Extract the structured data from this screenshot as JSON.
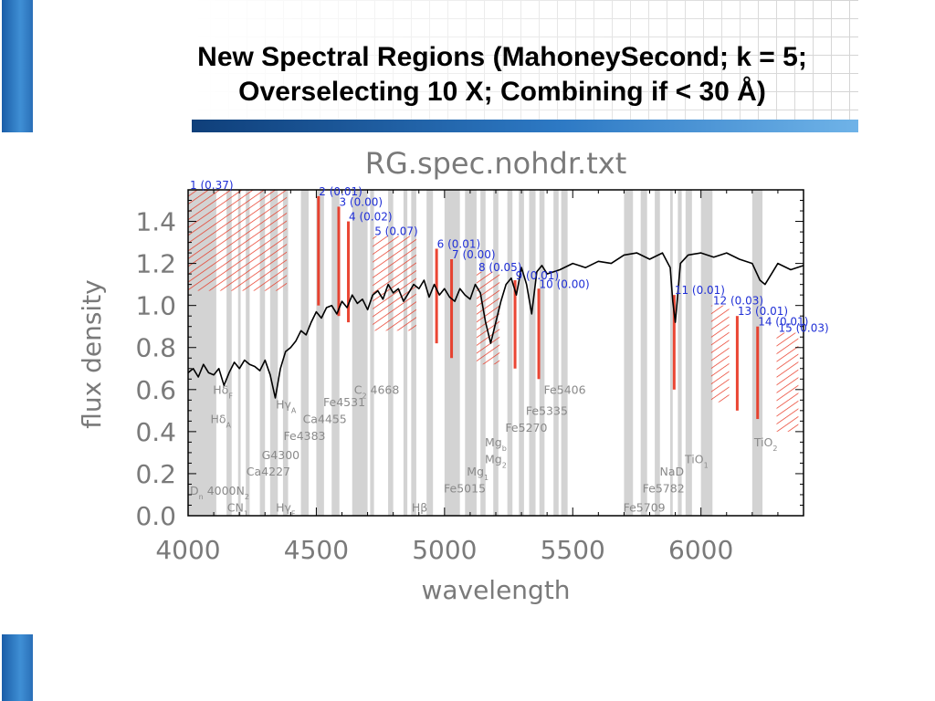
{
  "slide": {
    "title_line1": "New Spectral Regions (MahoneySecond; k = 5;",
    "title_line2": "Overselecting 10 X; Combining if < 30 Å)"
  },
  "colors": {
    "accent_blue": "#2a6fb8",
    "region_red": "#e8321e",
    "band_gray": "#d3d3d3",
    "label_blue": "#1f2fd6",
    "spectrum": "#000000"
  },
  "chart_data": {
    "type": "line",
    "title": "RG.spec.nohdr.txt",
    "xlabel": "wavelength",
    "ylabel": "flux density",
    "xlim": [
      4000,
      6400
    ],
    "ylim": [
      0.0,
      1.55
    ],
    "xticks": [
      4000,
      4500,
      5000,
      5500,
      6000
    ],
    "xtick_labels": [
      "4000",
      "4500",
      "5000",
      "5500",
      "6000"
    ],
    "yticks": [
      0.0,
      0.2,
      0.4,
      0.6,
      0.8,
      1.0,
      1.2,
      1.4
    ],
    "ytick_labels": [
      "0.0",
      "0.2",
      "0.4",
      "0.6",
      "0.8",
      "1.0",
      "1.2",
      "1.4"
    ],
    "spectrum": {
      "x": [
        4000,
        4020,
        4040,
        4060,
        4080,
        4100,
        4120,
        4140,
        4160,
        4180,
        4200,
        4220,
        4240,
        4260,
        4280,
        4300,
        4320,
        4340,
        4360,
        4380,
        4400,
        4420,
        4440,
        4460,
        4480,
        4500,
        4520,
        4540,
        4560,
        4580,
        4600,
        4620,
        4640,
        4660,
        4680,
        4700,
        4720,
        4740,
        4760,
        4780,
        4800,
        4820,
        4840,
        4860,
        4880,
        4900,
        4920,
        4940,
        4960,
        4980,
        5000,
        5020,
        5040,
        5060,
        5080,
        5100,
        5120,
        5140,
        5160,
        5180,
        5200,
        5220,
        5240,
        5260,
        5280,
        5300,
        5320,
        5340,
        5360,
        5380,
        5400,
        5450,
        5500,
        5550,
        5600,
        5650,
        5700,
        5750,
        5800,
        5850,
        5880,
        5890,
        5900,
        5920,
        5950,
        6000,
        6050,
        6100,
        6150,
        6200,
        6230,
        6250,
        6280,
        6300,
        6350,
        6400
      ],
      "y": [
        0.68,
        0.7,
        0.66,
        0.72,
        0.68,
        0.67,
        0.7,
        0.62,
        0.68,
        0.73,
        0.7,
        0.74,
        0.72,
        0.71,
        0.69,
        0.74,
        0.67,
        0.56,
        0.7,
        0.78,
        0.8,
        0.83,
        0.88,
        0.86,
        0.92,
        0.97,
        0.94,
        0.99,
        1.0,
        0.96,
        1.02,
        0.99,
        1.05,
        1.01,
        1.03,
        0.98,
        1.05,
        1.07,
        1.03,
        1.1,
        1.06,
        1.08,
        1.02,
        1.06,
        1.1,
        1.08,
        1.12,
        1.04,
        1.1,
        1.05,
        1.08,
        1.04,
        1.02,
        1.08,
        1.05,
        1.03,
        1.1,
        1.06,
        0.92,
        0.82,
        0.92,
        1.02,
        1.1,
        1.13,
        1.05,
        1.18,
        1.1,
        0.96,
        1.16,
        1.19,
        1.15,
        1.17,
        1.2,
        1.18,
        1.21,
        1.2,
        1.24,
        1.25,
        1.22,
        1.25,
        1.18,
        1.02,
        0.92,
        1.2,
        1.24,
        1.25,
        1.23,
        1.25,
        1.22,
        1.2,
        1.12,
        1.1,
        1.16,
        1.2,
        1.17,
        1.19
      ]
    },
    "gray_bands": [
      [
        4000,
        4110
      ],
      [
        4150,
        4170
      ],
      [
        4195,
        4205
      ],
      [
        4225,
        4240
      ],
      [
        4280,
        4300
      ],
      [
        4320,
        4350
      ],
      [
        4370,
        4390
      ],
      [
        4440,
        4470
      ],
      [
        4500,
        4530
      ],
      [
        4560,
        4590
      ],
      [
        4640,
        4700
      ],
      [
        4710,
        4725
      ],
      [
        4780,
        4800
      ],
      [
        4840,
        4855
      ],
      [
        4870,
        4890
      ],
      [
        4930,
        4955
      ],
      [
        5000,
        5060
      ],
      [
        5080,
        5125
      ],
      [
        5140,
        5160
      ],
      [
        5190,
        5210
      ],
      [
        5245,
        5265
      ],
      [
        5290,
        5310
      ],
      [
        5330,
        5355
      ],
      [
        5370,
        5390
      ],
      [
        5425,
        5445
      ],
      [
        5455,
        5480
      ],
      [
        5700,
        5735
      ],
      [
        5765,
        5790
      ],
      [
        5820,
        5840
      ],
      [
        5880,
        5890
      ],
      [
        5910,
        5925
      ],
      [
        5940,
        5965
      ],
      [
        6000,
        6045
      ],
      [
        6200,
        6240
      ]
    ],
    "regions": [
      {
        "label": "1",
        "value": "(0.37)",
        "x0": 4000,
        "x1": 4385,
        "y0": 1.07,
        "y1": 1.55
      },
      {
        "label": "2",
        "value": "(0.01)",
        "x0": 4505,
        "x1": 4512,
        "y0": 1.0,
        "y1": 1.52
      },
      {
        "label": "3",
        "value": "(0.00)",
        "x0": 4585,
        "x1": 4590,
        "y0": 0.95,
        "y1": 1.47
      },
      {
        "label": "4",
        "value": "(0.02)",
        "x0": 4610,
        "x1": 4640,
        "y0": 0.92,
        "y1": 1.4
      },
      {
        "label": "5",
        "value": "(0.07)",
        "x0": 4720,
        "x1": 4890,
        "y0": 0.88,
        "y1": 1.33
      },
      {
        "label": "6",
        "value": "(0.01)",
        "x0": 4960,
        "x1": 4978,
        "y0": 0.82,
        "y1": 1.27
      },
      {
        "label": "7",
        "value": "(0.00)",
        "x0": 5025,
        "x1": 5030,
        "y0": 0.75,
        "y1": 1.22
      },
      {
        "label": "8",
        "value": "(0.05)",
        "x0": 5125,
        "x1": 5215,
        "y0": 0.72,
        "y1": 1.16
      },
      {
        "label": "9",
        "value": "(0.01)",
        "x0": 5270,
        "x1": 5280,
        "y0": 0.7,
        "y1": 1.12
      },
      {
        "label": "10",
        "value": "(0.00)",
        "x0": 5365,
        "x1": 5370,
        "y0": 0.65,
        "y1": 1.08
      },
      {
        "label": "11",
        "value": "(0.01)",
        "x0": 5893,
        "x1": 5898,
        "y0": 0.6,
        "y1": 1.05
      },
      {
        "label": "12",
        "value": "(0.03)",
        "x0": 6040,
        "x1": 6110,
        "y0": 0.54,
        "y1": 1.0
      },
      {
        "label": "13",
        "value": "(0.01)",
        "x0": 6138,
        "x1": 6145,
        "y0": 0.5,
        "y1": 0.95
      },
      {
        "label": "14",
        "value": "(0.01)",
        "x0": 6210,
        "x1": 6232,
        "y0": 0.46,
        "y1": 0.9
      },
      {
        "label": "15",
        "value": "(0.03)",
        "x0": 6295,
        "x1": 6380,
        "y0": 0.4,
        "y1": 0.87
      }
    ],
    "features": [
      {
        "label": "D",
        "sub": "n",
        "after": " 4000",
        "x": 4000,
        "y": 0.1
      },
      {
        "label": "N",
        "sub": "2",
        "after": "",
        "x": 4180,
        "y": 0.1
      },
      {
        "label": "CN",
        "sub": "1",
        "after": "",
        "x": 4145,
        "y": 0.02
      },
      {
        "label": "Hδ",
        "sub": "F",
        "after": "",
        "x": 4090,
        "y": 0.58
      },
      {
        "label": "Hδ",
        "sub": "A",
        "after": "",
        "x": 4080,
        "y": 0.44
      },
      {
        "label": "Hγ",
        "sub": "A",
        "after": "",
        "x": 4335,
        "y": 0.51
      },
      {
        "label": "Hγ",
        "sub": "F",
        "after": "",
        "x": 4335,
        "y": 0.02
      },
      {
        "label": "Fe4531",
        "sub": "",
        "after": "",
        "x": 4520,
        "y": 0.52
      },
      {
        "label": "C",
        "sub": "2",
        "after": " 4668",
        "x": 4640,
        "y": 0.58
      },
      {
        "label": "Ca4455",
        "sub": "",
        "after": "",
        "x": 4440,
        "y": 0.44
      },
      {
        "label": "Fe4383",
        "sub": "",
        "after": "",
        "x": 4365,
        "y": 0.36
      },
      {
        "label": "G4300",
        "sub": "",
        "after": "",
        "x": 4280,
        "y": 0.27
      },
      {
        "label": "Ca4227",
        "sub": "",
        "after": "",
        "x": 4220,
        "y": 0.19
      },
      {
        "label": "Hβ",
        "sub": "",
        "after": "",
        "x": 4865,
        "y": 0.02
      },
      {
        "label": "Fe5015",
        "sub": "",
        "after": "",
        "x": 4990,
        "y": 0.11
      },
      {
        "label": "Mg",
        "sub": "1",
        "after": "",
        "x": 5080,
        "y": 0.19
      },
      {
        "label": "Mg",
        "sub": "2",
        "after": "",
        "x": 5150,
        "y": 0.25
      },
      {
        "label": "Mg",
        "sub": "b",
        "after": "",
        "x": 5150,
        "y": 0.33
      },
      {
        "label": "Fe5270",
        "sub": "",
        "after": "",
        "x": 5230,
        "y": 0.4
      },
      {
        "label": "Fe5335",
        "sub": "",
        "after": "",
        "x": 5310,
        "y": 0.48
      },
      {
        "label": "Fe5406",
        "sub": "",
        "after": "",
        "x": 5380,
        "y": 0.58
      },
      {
        "label": "Fe5709",
        "sub": "",
        "after": "",
        "x": 5690,
        "y": 0.02
      },
      {
        "label": "Fe5782",
        "sub": "",
        "after": "",
        "x": 5765,
        "y": 0.11
      },
      {
        "label": "NaD",
        "sub": "",
        "after": "",
        "x": 5832,
        "y": 0.19
      },
      {
        "label": "TiO",
        "sub": "1",
        "after": "",
        "x": 5930,
        "y": 0.25
      },
      {
        "label": "TiO",
        "sub": "2",
        "after": "",
        "x": 6200,
        "y": 0.33
      }
    ]
  }
}
